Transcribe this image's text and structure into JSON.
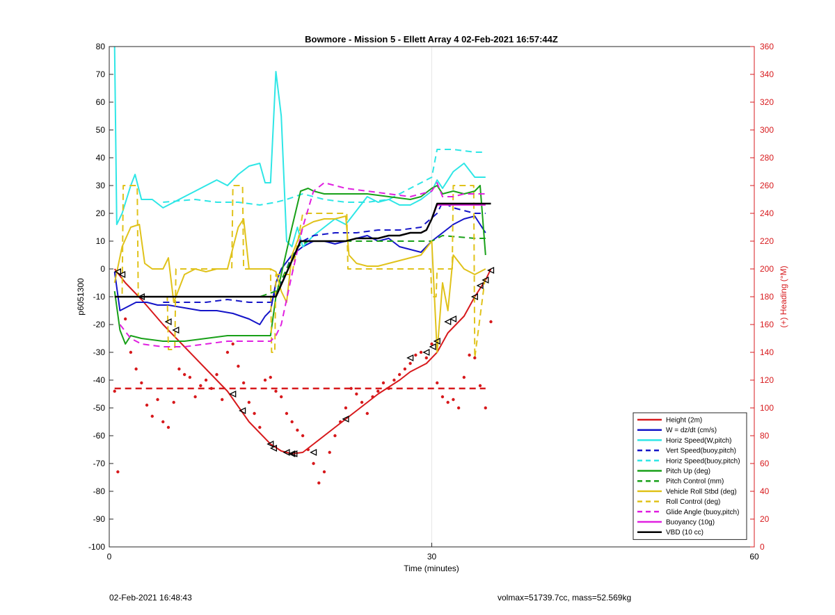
{
  "chart_data": {
    "type": "line",
    "title": "Bowmore - Mission 5 - Ellett Array 4 02-Feb-2021 16:57:44Z",
    "xlabel": "Time (minutes)",
    "ylabel": "p6051300",
    "ylabel_right": "(+) Heading (°M)",
    "xlim": [
      0,
      60
    ],
    "ylim": [
      -100,
      80
    ],
    "ylim_right": [
      0,
      360
    ],
    "xticks": [
      0,
      30,
      60
    ],
    "yticks": [
      -100,
      -90,
      -80,
      -70,
      -60,
      -50,
      -40,
      -30,
      -20,
      -10,
      0,
      10,
      20,
      30,
      40,
      50,
      60,
      70,
      80
    ],
    "yticks_right": [
      0,
      20,
      40,
      60,
      80,
      100,
      120,
      140,
      160,
      180,
      200,
      220,
      240,
      260,
      280,
      300,
      320,
      340,
      360
    ],
    "grid": "vertical at x ticks",
    "legend_position": "bottom-right",
    "colors": {
      "red": "#d7191c",
      "blue": "#1414c8",
      "cyan": "#2ee6e6",
      "green": "#18a018",
      "yellow": "#e0c21a",
      "magenta": "#e020e0",
      "black": "#000000",
      "axis_right": "#d7191c"
    },
    "legend": [
      {
        "label": "Height (2m)",
        "color": "#d7191c",
        "dash": false
      },
      {
        "label": "W = dz/dt (cm/s)",
        "color": "#1414c8",
        "dash": false
      },
      {
        "label": "Horiz Speed(W,pitch)",
        "color": "#2ee6e6",
        "dash": false
      },
      {
        "label": "Vert Speed(buoy,pitch)",
        "color": "#1414c8",
        "dash": true
      },
      {
        "label": "Horiz Speed(buoy,pitch)",
        "color": "#2ee6e6",
        "dash": true
      },
      {
        "label": "Pitch Up (deg)",
        "color": "#18a018",
        "dash": false
      },
      {
        "label": "Pitch Control (mm)",
        "color": "#18a018",
        "dash": true
      },
      {
        "label": "Vehicle Roll Stbd (deg)",
        "color": "#e0c21a",
        "dash": false
      },
      {
        "label": "Roll Control (deg)",
        "color": "#e0c21a",
        "dash": true
      },
      {
        "label": "Glide Angle (buoy,pitch)",
        "color": "#e020e0",
        "dash": true
      },
      {
        "label": "Buoyancy (10g)",
        "color": "#e020e0",
        "dash": false
      },
      {
        "label": "VBD (10 cc)",
        "color": "#000000",
        "dash": false
      }
    ],
    "series": [
      {
        "name": "Height (2m)",
        "color": "#d7191c",
        "dash": false,
        "width": 2,
        "x": [
          0.5,
          1.5,
          3,
          5,
          7,
          9,
          11,
          13,
          15,
          16,
          17,
          18,
          19,
          21,
          23,
          25,
          27,
          28,
          29.5,
          30.5,
          31.5,
          33,
          34,
          35,
          35.5
        ],
        "y": [
          0,
          -5,
          -11,
          -20,
          -28,
          -36,
          -44,
          -55,
          -63,
          -65.5,
          -66.5,
          -66,
          -63,
          -57,
          -51,
          -45,
          -40,
          -37,
          -34,
          -30,
          -23,
          -17,
          -10,
          -4,
          0
        ]
      },
      {
        "name": "W = dz/dt (cm/s)",
        "color": "#1414c8",
        "dash": false,
        "width": 2,
        "x": [
          0.5,
          1,
          1.5,
          2.5,
          3.5,
          4.5,
          5.5,
          7,
          8.5,
          10,
          11.5,
          13,
          14,
          14.5,
          15,
          15.5,
          16,
          17,
          18,
          19,
          20,
          21,
          22,
          23,
          24,
          25,
          26,
          27,
          28,
          29,
          30,
          31,
          32,
          33,
          34,
          35
        ],
        "y": [
          -1,
          -15,
          -14,
          -12,
          -12,
          -13,
          -13,
          -14,
          -15,
          -15,
          -16,
          -18,
          -20,
          -17,
          -15,
          -5,
          0,
          5,
          8,
          10,
          10,
          9,
          10,
          11,
          12,
          10,
          11,
          8,
          7,
          6,
          10,
          13,
          16,
          18,
          19,
          13
        ]
      },
      {
        "name": "Horiz Speed(W,pitch)",
        "color": "#2ee6e6",
        "dash": false,
        "width": 2,
        "x": [
          0.5,
          0.7,
          1.2,
          2,
          2.4,
          3,
          4,
          5,
          6,
          7,
          8,
          9,
          10,
          11,
          12,
          13,
          14,
          14.5,
          15,
          15.5,
          16,
          16.5,
          17,
          17.5,
          18,
          19,
          20,
          21,
          22,
          23,
          24,
          25,
          26,
          27,
          28,
          29,
          30,
          30.5,
          31,
          32,
          33,
          34,
          35
        ],
        "y": [
          80,
          16,
          20,
          30,
          34,
          25,
          25,
          22,
          24,
          26,
          28,
          30,
          32,
          30,
          34,
          37,
          38,
          31,
          31,
          71,
          55,
          10,
          8,
          15,
          8,
          12,
          15,
          18,
          16,
          21,
          26,
          24,
          25,
          23,
          23,
          25,
          28,
          32,
          29,
          35,
          38,
          33,
          33
        ]
      },
      {
        "name": "Vert Speed(buoy,pitch)",
        "color": "#1414c8",
        "dash": true,
        "width": 2,
        "x": [
          5,
          7,
          9,
          11,
          13,
          15,
          16,
          17,
          18,
          19,
          21,
          23,
          25,
          27,
          29,
          30.5,
          31,
          32,
          33,
          34,
          35
        ],
        "y": [
          -12,
          -12,
          -12,
          -11,
          -12,
          -12,
          -5,
          5,
          10,
          12,
          13,
          13,
          14,
          14,
          15,
          20,
          24,
          22,
          21,
          20,
          20
        ]
      },
      {
        "name": "Horiz Speed(buoy,pitch)",
        "color": "#2ee6e6",
        "dash": true,
        "width": 2,
        "x": [
          5,
          8,
          10,
          12,
          14,
          15.5,
          16.5,
          18,
          20,
          22,
          24,
          26,
          28,
          30,
          30.5,
          32,
          34,
          35
        ],
        "y": [
          24,
          25,
          24,
          24,
          23,
          24,
          25,
          27,
          25,
          24,
          24,
          25,
          29,
          33,
          43,
          43,
          42,
          42
        ]
      },
      {
        "name": "Pitch Up (deg)",
        "color": "#18a018",
        "dash": false,
        "width": 2,
        "x": [
          0.5,
          1,
          1.5,
          2,
          3,
          5,
          7,
          9,
          11,
          13,
          15,
          15.5,
          16,
          17,
          17.8,
          18.5,
          19,
          20,
          22,
          24,
          26,
          28,
          29,
          30,
          30.5,
          31,
          32,
          33,
          34,
          34.5,
          35
        ],
        "y": [
          -8,
          -22,
          -27,
          -24,
          -25,
          -26,
          -26,
          -25,
          -24,
          -24,
          -24,
          -10,
          -2,
          15,
          28,
          29,
          28,
          27,
          27,
          27,
          26,
          25,
          26,
          29,
          30,
          27,
          28,
          27,
          28,
          30,
          5
        ]
      },
      {
        "name": "Pitch Control (mm)",
        "color": "#18a018",
        "dash": true,
        "width": 2,
        "x": [
          0.5,
          3,
          5,
          7,
          10,
          14,
          15.5,
          16.5,
          17.5,
          18.5,
          20,
          22,
          25,
          28,
          30,
          31,
          34,
          35
        ],
        "y": [
          -10,
          -10,
          -10,
          -10,
          -10,
          -10,
          -8,
          0,
          8,
          10,
          10,
          10,
          10,
          10,
          10,
          12,
          11,
          11
        ]
      },
      {
        "name": "Vehicle Roll Stbd (deg)",
        "color": "#e0c21a",
        "dash": false,
        "width": 2,
        "x": [
          0.5,
          1.2,
          2,
          2.8,
          3.3,
          4,
          5,
          5.5,
          6,
          7,
          8,
          9,
          10,
          11,
          12,
          12.5,
          13,
          13.5,
          14,
          15,
          15.5,
          16,
          16.5,
          17,
          18,
          19,
          20,
          21,
          22,
          22.3,
          23,
          24,
          25,
          26,
          27,
          28,
          29,
          30,
          30.5,
          31,
          31.5,
          32,
          33,
          34,
          35
        ],
        "y": [
          -5,
          8,
          15,
          16,
          2,
          0,
          0,
          4,
          -12,
          -2,
          0,
          -1,
          0,
          0,
          15,
          18,
          0,
          0,
          0,
          0,
          -1,
          -8,
          -12,
          5,
          15,
          17,
          18,
          18,
          19,
          5,
          2,
          1,
          1,
          2,
          3,
          4,
          5,
          10,
          -30,
          -5,
          -15,
          5,
          0,
          -2,
          0
        ]
      },
      {
        "name": "Roll Control (deg)",
        "color": "#e0c21a",
        "dash": true,
        "width": 2,
        "x": [
          0.5,
          1.2,
          1.3,
          2.6,
          2.7,
          5.4,
          5.5,
          6.1,
          6.2,
          11.4,
          11.5,
          12.4,
          12.5,
          15,
          15.1,
          15.4,
          15.5,
          17,
          18,
          22.1,
          22.2,
          29.9,
          30,
          30.4,
          30.5,
          31.9,
          32,
          33.9,
          34,
          35
        ],
        "y": [
          -10,
          -10,
          30,
          30,
          -10,
          -10,
          -29,
          -29,
          0,
          0,
          30,
          30,
          0,
          0,
          -30,
          -30,
          -2,
          -2,
          20,
          20,
          0,
          0,
          -10,
          -10,
          0,
          0,
          30,
          30,
          -32,
          -2
        ]
      },
      {
        "name": "Glide Angle (buoy,pitch)",
        "color": "#e020e0",
        "dash": true,
        "width": 2,
        "x": [
          1,
          2,
          3,
          5,
          7,
          9,
          11,
          13,
          15,
          15.5,
          16,
          17,
          18,
          19,
          20,
          22,
          24,
          26,
          28,
          29,
          30,
          30.5,
          31,
          32,
          33,
          34,
          35
        ],
        "y": [
          -20,
          -25,
          -27,
          -28,
          -28,
          -27,
          -26,
          -26,
          -26,
          -24,
          -20,
          -2,
          15,
          28,
          31,
          29,
          28,
          27,
          26,
          27,
          28,
          31,
          26,
          26,
          27,
          27,
          27
        ]
      },
      {
        "name": "Buoyancy (10g)",
        "color": "#e020e0",
        "dash": false,
        "width": 2,
        "x": [
          0.5,
          15,
          15.5,
          17.8,
          18,
          22,
          23,
          25,
          26,
          27,
          28,
          29,
          29.5,
          30,
          30.5,
          31,
          32,
          33,
          34,
          35
        ],
        "y": [
          -10,
          -10,
          -10,
          10,
          10,
          10,
          11,
          11,
          12,
          12,
          13,
          13,
          14,
          18,
          23,
          23,
          23,
          23,
          23,
          23
        ]
      },
      {
        "name": "VBD (10 cc)",
        "color": "#000000",
        "dash": false,
        "width": 2.5,
        "x": [
          0.5,
          15,
          15.5,
          17.8,
          18,
          22,
          23,
          25,
          26,
          27,
          28,
          29,
          29.5,
          30,
          30.5,
          31,
          32,
          33,
          34,
          35.5
        ],
        "y": [
          -10,
          -10,
          -10,
          10,
          10,
          10,
          11,
          11,
          12,
          12,
          13,
          13,
          14,
          18,
          23.5,
          23.5,
          23.5,
          23.5,
          23.5,
          23.5
        ]
      },
      {
        "name": "Heading dashed",
        "color": "#d7191c",
        "dash": true,
        "width": 2.5,
        "x": [
          0.5,
          35
        ],
        "y": [
          -43,
          -43
        ]
      }
    ],
    "markers": {
      "x": [
        0.8,
        1.2,
        3,
        5.5,
        6.2,
        11.5,
        12.4,
        15,
        15.3,
        16.5,
        17,
        17.2,
        19,
        22,
        28,
        29.5,
        30.1,
        30.5,
        31.5,
        32,
        34,
        34.5,
        35,
        35.5
      ],
      "y": [
        -1,
        -2,
        -10,
        -19,
        -22,
        -45,
        -51,
        -63,
        -64.5,
        -66,
        -66.5,
        -66.5,
        -66,
        -54,
        -32,
        -30,
        -28,
        -26,
        -19,
        -18,
        -10,
        -6,
        -4,
        -0.5
      ]
    },
    "heading_points": {
      "x": [
        0.5,
        0.8,
        1.5,
        2,
        2.5,
        3,
        3.5,
        4,
        4.5,
        5,
        5.5,
        6,
        6.5,
        7,
        7.5,
        8,
        8.5,
        9,
        9.5,
        10,
        10.5,
        11,
        11.5,
        12,
        12.5,
        13,
        13.5,
        14,
        14.5,
        15,
        15.5,
        16,
        16.5,
        17,
        17.5,
        18,
        18.5,
        19,
        19.5,
        20,
        20.5,
        21,
        21.5,
        22,
        22.5,
        23,
        23.5,
        24,
        24.5,
        25,
        25.5,
        26,
        26.5,
        27,
        27.5,
        28,
        28.5,
        29,
        29.5,
        30,
        30.5,
        31,
        31.5,
        32,
        32.5,
        33,
        33.5,
        34,
        34.5,
        35,
        35.5
      ],
      "y": [
        -44,
        -73,
        -18,
        -30,
        -36,
        -41,
        -49,
        -53,
        -47,
        -55,
        -57,
        -48,
        -36,
        -38,
        -39,
        -46,
        -42,
        -40,
        -43,
        -38,
        -47,
        -30,
        -27,
        -35,
        -41,
        -48,
        -52,
        -57,
        -40,
        -39,
        -44,
        -46,
        -52,
        -55,
        -58,
        -60,
        -65,
        -70,
        -77,
        -73,
        -66,
        -60,
        -55,
        -50,
        -43,
        -45,
        -48,
        -52,
        -46,
        -44,
        -41,
        -43,
        -40,
        -38,
        -36,
        -34,
        -31,
        -30,
        -32,
        -27,
        -41,
        -46,
        -48,
        -47,
        -50,
        -39,
        -31,
        -32,
        -42,
        -50,
        -19
      ]
    }
  },
  "footer": {
    "timestamp": "02-Feb-2021 16:48:43",
    "mass_info": "volmax=51739.7cc, mass=52.569kg"
  }
}
